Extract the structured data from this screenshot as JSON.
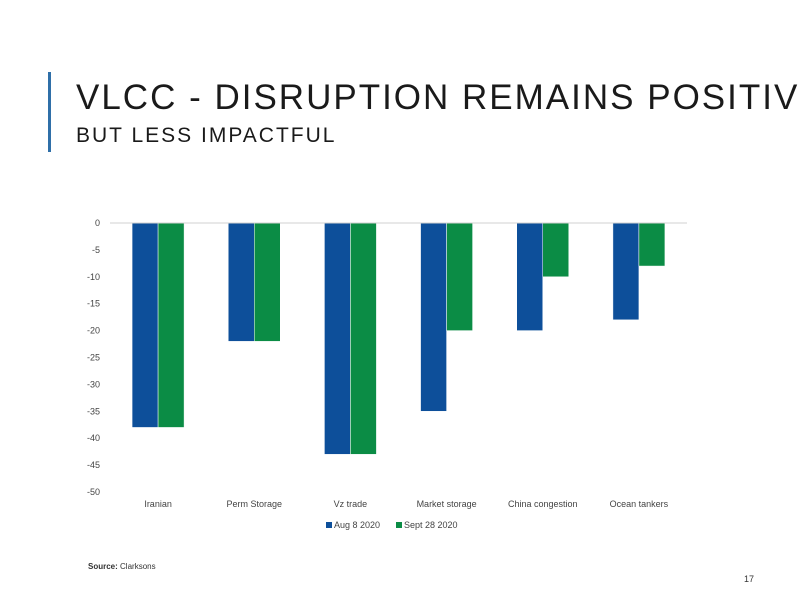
{
  "slide": {
    "title": "VLCC - DISRUPTION REMAINS POSITIVE",
    "subtitle": "BUT LESS IMPACTFUL",
    "source_label": "Source:",
    "source_value": "Clarksons",
    "page_number": "17"
  },
  "colors": {
    "accent": "#2f6fa8",
    "series_1": "#0d4f9a",
    "series_2": "#0b8c45"
  },
  "chart_data": {
    "type": "bar",
    "categories": [
      "Iranian",
      "Perm Storage",
      "Vz trade",
      "Market storage",
      "China congestion",
      "Ocean tankers"
    ],
    "series": [
      {
        "name": "Aug 8 2020",
        "values": [
          -38,
          -22,
          -43,
          -35,
          -20,
          -18
        ]
      },
      {
        "name": "Sept 28 2020",
        "values": [
          -38,
          -22,
          -43,
          -20,
          -10,
          -8
        ]
      }
    ],
    "ylim": [
      -50,
      0
    ],
    "yticks": [
      0,
      -5,
      -10,
      -15,
      -20,
      -25,
      -30,
      -35,
      -40,
      -45,
      -50
    ],
    "grid": false,
    "legend_position": "bottom"
  }
}
